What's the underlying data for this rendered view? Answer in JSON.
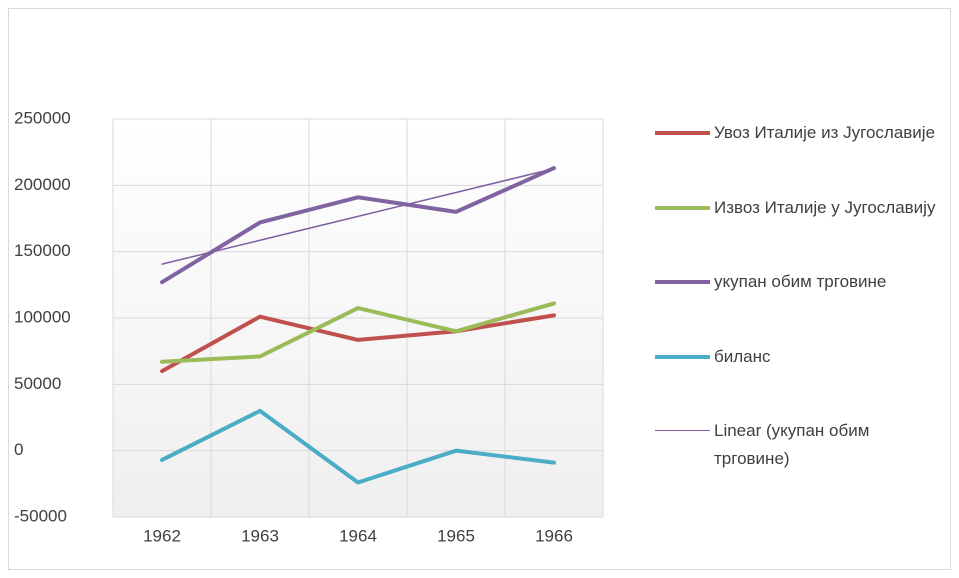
{
  "chart_data": {
    "type": "line",
    "categories": [
      "1962",
      "1963",
      "1964",
      "1965",
      "1966"
    ],
    "series": [
      {
        "name": "Увоз Италије из Југославије",
        "color": "#c0504d",
        "width": 4,
        "values": [
          60000,
          101000,
          83500,
          90000,
          102000
        ]
      },
      {
        "name": "Извоз Италије у Југославију",
        "color": "#9bbb59",
        "width": 4,
        "values": [
          67000,
          71000,
          107500,
          90000,
          111000
        ]
      },
      {
        "name": "укупан обим трговине",
        "color": "#8064a2",
        "width": 4,
        "values": [
          127000,
          172000,
          191000,
          180000,
          213000
        ]
      },
      {
        "name": "биланс",
        "color": "#4bacc6",
        "width": 4,
        "values": [
          -7000,
          30000,
          -24000,
          0,
          -9000
        ]
      },
      {
        "name": "Linear (укупан обим трговине)",
        "color": "#7f5fa0",
        "width": 1.5,
        "values": [
          140600,
          158600,
          176600,
          194600,
          212600
        ]
      }
    ],
    "ylim": [
      -50000,
      250000
    ],
    "yticks": [
      -50000,
      0,
      50000,
      100000,
      150000,
      200000,
      250000
    ],
    "grid": true,
    "legend": "right"
  }
}
